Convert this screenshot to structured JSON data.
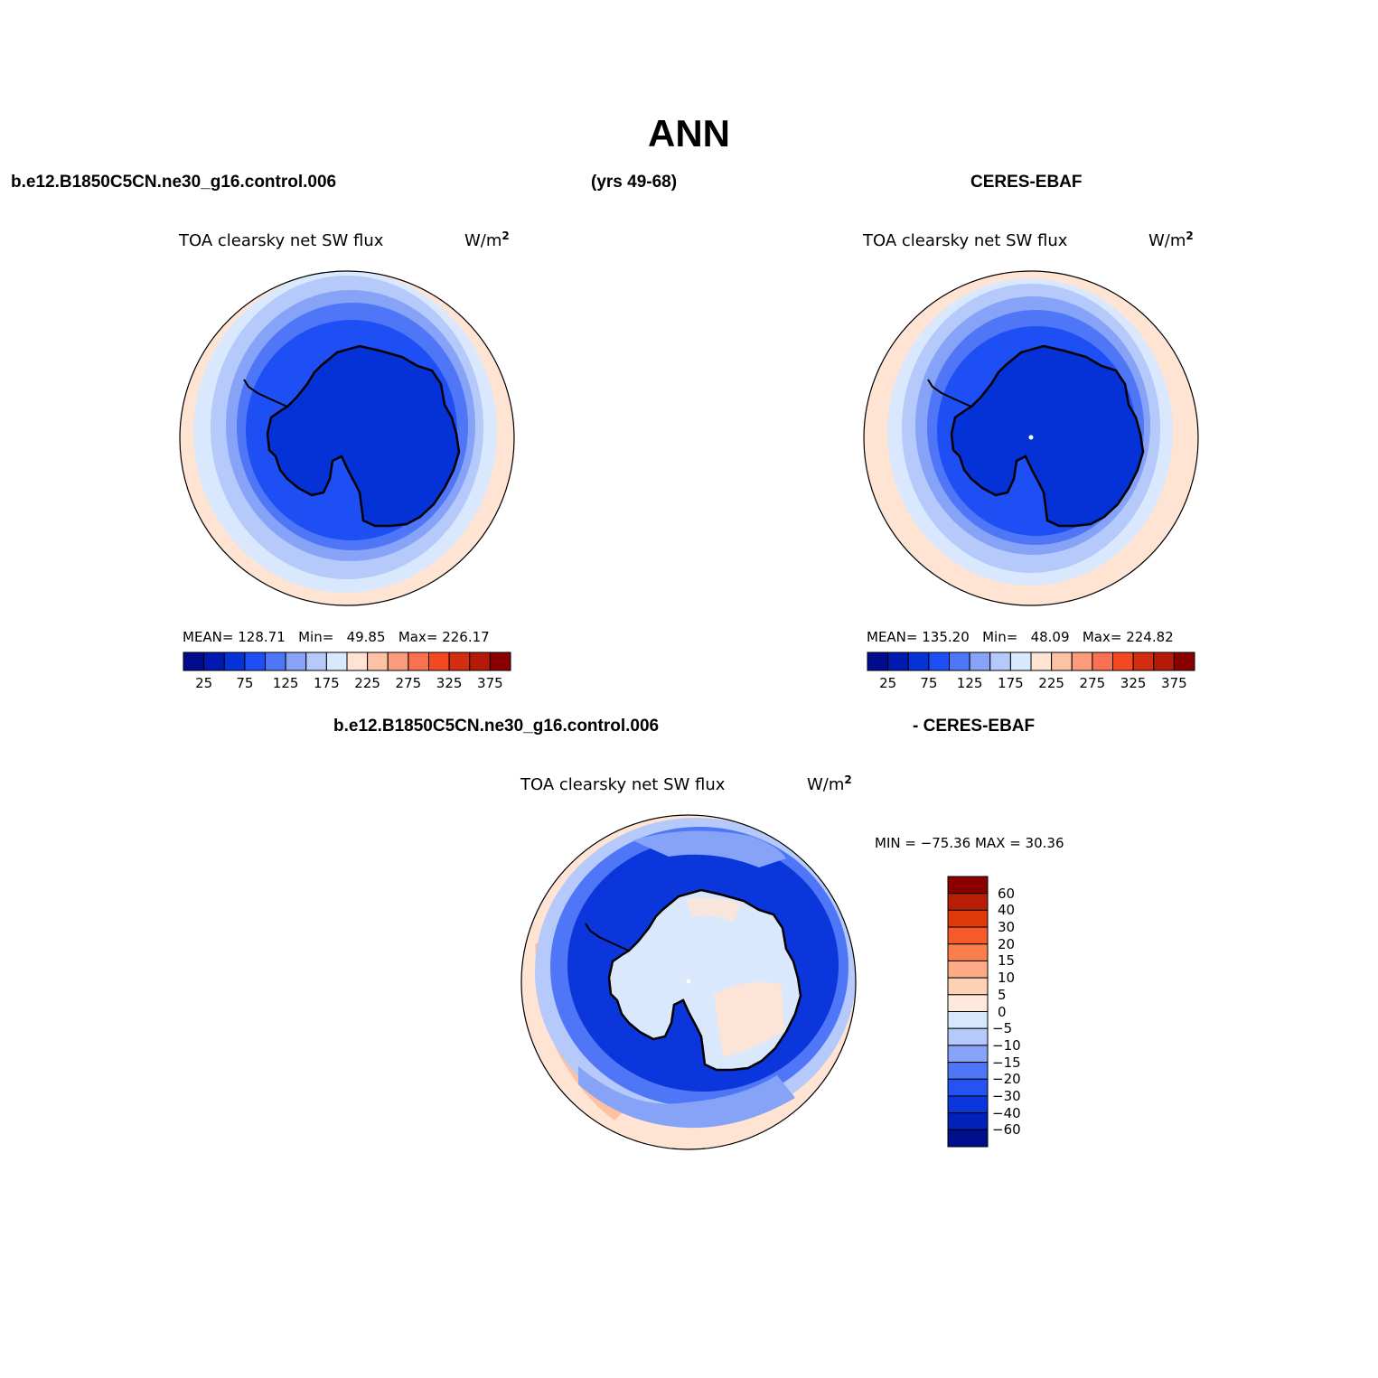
{
  "title": "ANN",
  "header": {
    "case_name": "b.e12.B1850C5CN.ne30_g16.control.006",
    "years": "(yrs 49-68)",
    "obs_name": "CERES-EBAF",
    "diff_case": "b.e12.B1850C5CN.ne30_g16.control.006",
    "diff_obs": "- CERES-EBAF"
  },
  "panels": [
    {
      "id": "model",
      "variable": "TOA clearsky net SW flux",
      "units": "W/m",
      "units_sup": "2",
      "mean_label": "MEAN=",
      "mean": "128.71",
      "min_label": "Min=",
      "min": "49.85",
      "max_label": "Max=",
      "max": "226.17"
    },
    {
      "id": "obs",
      "variable": "TOA clearsky net SW flux",
      "units": "W/m",
      "units_sup": "2",
      "mean_label": "MEAN=",
      "mean": "135.20",
      "min_label": "Min=",
      "min": "48.09",
      "max_label": "Max=",
      "max": "224.82"
    },
    {
      "id": "diff",
      "variable": "TOA clearsky net SW flux",
      "units": "W/m",
      "units_sup": "2",
      "minmax": "MIN = −75.36 MAX =   30.36"
    }
  ],
  "colorbar_abs": {
    "colors": [
      "#000c8b",
      "#0019b0",
      "#0432d6",
      "#1e4ff5",
      "#4f76f6",
      "#86a3f7",
      "#b5c9fa",
      "#d9e8fd",
      "#ffe4d3",
      "#fdc1a3",
      "#fb9d7c",
      "#f87252",
      "#f44a23",
      "#d42d11",
      "#b51a08",
      "#8a0000"
    ],
    "labels": [
      "25",
      "75",
      "125",
      "175",
      "225",
      "275",
      "325",
      "375"
    ]
  },
  "colorbar_diff": {
    "colors": [
      "#8a0000",
      "#b81e06",
      "#de3a0a",
      "#f55a28",
      "#fb7f4c",
      "#fcab85",
      "#fed0b4",
      "#ffe9dc",
      "#d7e8fd",
      "#b5c9fa",
      "#86a3f7",
      "#4f76f6",
      "#2553f3",
      "#0a36dc",
      "#0221b8",
      "#00108d"
    ],
    "labels": [
      "60",
      "40",
      "30",
      "20",
      "15",
      "10",
      "5",
      "0",
      "−5",
      "−10",
      "−15",
      "−20",
      "−30",
      "−40",
      "−60"
    ]
  },
  "map_colors": {
    "ring_outer": "#ffe4d3",
    "ring_1": "#d9e8fd",
    "ring_2": "#b5c9fa",
    "ring_3": "#86a3f7",
    "ring_4": "#4f76f6",
    "ring_5": "#1e4ff5",
    "continent": "#0432d6",
    "diff_ocean_pos": "#fdc1a3",
    "diff_land": "#d9e8fd",
    "diff_neg_strong": "#0a36dc",
    "diff_neg_mid": "#4f76f6",
    "diff_neg_weak": "#b5c9fa"
  }
}
